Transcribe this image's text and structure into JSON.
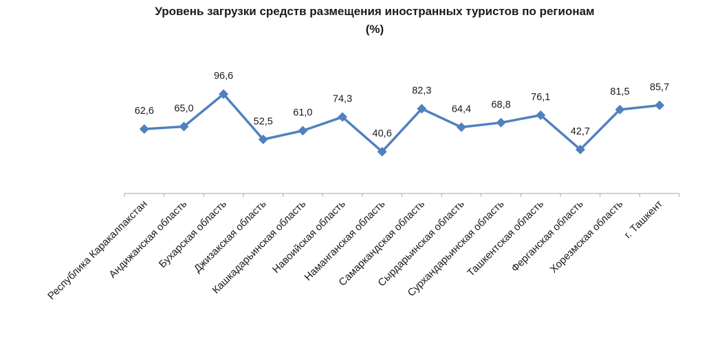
{
  "chart_data": {
    "type": "line",
    "title_line1": "Уровень загрузки средств размещения иностранных туристов по регионам",
    "title_line2": "(%)",
    "categories": [
      "Республика Каракалпакстан",
      "Андижанская область",
      "Бухарская область",
      "Джизакская область",
      "Кашкадарьинская область",
      "Навоийская область",
      "Наманганская область",
      "Самаркандская область",
      "Сырдарьинская область",
      "Сурхандарьинская область",
      "Ташкентская область",
      "Ферганская область",
      "Хорезмская область",
      "г. Ташкент"
    ],
    "values": [
      62.6,
      65.0,
      96.6,
      52.5,
      61.0,
      74.3,
      40.6,
      82.3,
      64.4,
      68.8,
      76.1,
      42.7,
      81.5,
      85.7
    ],
    "value_labels": [
      "62,6",
      "65,0",
      "96,6",
      "52,5",
      "61,0",
      "74,3",
      "40,6",
      "82,3",
      "64,4",
      "68,8",
      "76,1",
      "42,7",
      "81,5",
      "85,7"
    ],
    "ylim": [
      0,
      120
    ],
    "line_color": "#4F81BD",
    "axis_color": "#A6A6A6",
    "grid": false,
    "legend": "none"
  }
}
